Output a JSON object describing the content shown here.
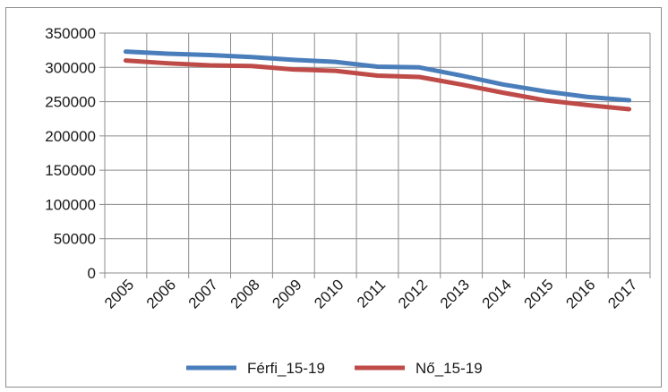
{
  "chart_data": {
    "type": "line",
    "x": [
      "2005",
      "2006",
      "2007",
      "2008",
      "2009",
      "2010",
      "2011",
      "2012",
      "2013",
      "2014",
      "2015",
      "2016",
      "2017"
    ],
    "ylim": [
      0,
      350000
    ],
    "yticks": [
      0,
      50000,
      100000,
      150000,
      200000,
      250000,
      300000,
      350000
    ],
    "ytick_labels": [
      "0",
      "50000",
      "100000",
      "150000",
      "200000",
      "250000",
      "300000",
      "350000"
    ],
    "grid": true,
    "legend_position": "bottom",
    "series": [
      {
        "name": "Férfi_15-19",
        "color": "#4a7ebb",
        "values": [
          323000,
          320000,
          318000,
          315000,
          311000,
          308000,
          301000,
          300000,
          288000,
          275000,
          265000,
          257000,
          252000
        ]
      },
      {
        "name": "Nő_15-19",
        "color": "#be4b48",
        "values": [
          310000,
          306000,
          303000,
          302000,
          297000,
          295000,
          288000,
          286000,
          275000,
          263000,
          252000,
          245000,
          239000
        ]
      }
    ]
  }
}
